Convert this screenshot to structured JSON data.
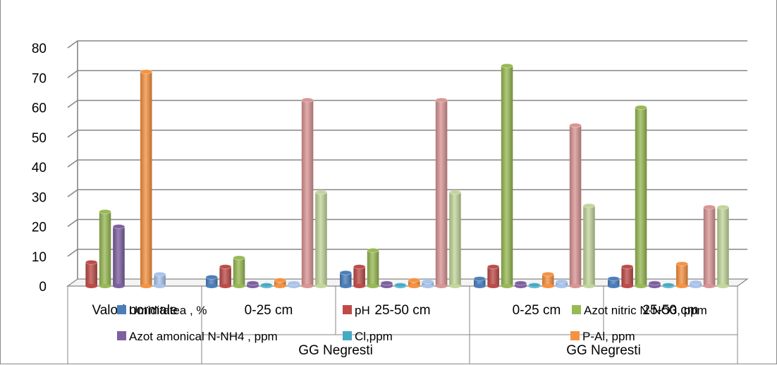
{
  "chart_data": {
    "type": "bar",
    "title": "",
    "xlabel": "",
    "ylabel": "",
    "ylim": [
      0,
      80
    ],
    "yticks": [
      "0",
      "10",
      "20",
      "30",
      "40",
      "50",
      "60",
      "70",
      "80"
    ],
    "grid": true,
    "legend_position": "overlapping-bottom",
    "categories": [
      {
        "label": "Valori normale",
        "group": ""
      },
      {
        "label": "0-25 cm",
        "group": "GG Negresti"
      },
      {
        "label": "25-50 cm",
        "group": "GG Negresti"
      },
      {
        "label": "0-25 cm",
        "group": "GG Negresti"
      },
      {
        "label": "25-50 cm",
        "group": "GG Negresti"
      }
    ],
    "groups": [
      {
        "label": "GG Negresti"
      },
      {
        "label": "GG Negresti"
      }
    ],
    "series": [
      {
        "name": "Umiditatea , %",
        "color": "#4a7ebb",
        "values": [
          null,
          3,
          4.5,
          2.5,
          2.5
        ]
      },
      {
        "name": "pH",
        "color": "#be4b48",
        "values": [
          8,
          6.5,
          6.5,
          6.5,
          6.5
        ]
      },
      {
        "name": "Azot nitric N-NO3, ppm",
        "color": "#98b954",
        "values": [
          25,
          9.5,
          12,
          74,
          60
        ]
      },
      {
        "name": "Azot amonical N-NH4 , ppm",
        "color": "#7d60a0",
        "values": [
          20,
          1,
          1,
          1,
          1
        ]
      },
      {
        "name": "Cl,ppm",
        "color": "#46aac5",
        "values": [
          null,
          0.2,
          0.2,
          0.2,
          0.2
        ]
      },
      {
        "name": "P-Al, ppm",
        "color": "#f69240",
        "values": [
          72,
          2,
          2,
          4,
          7.5
        ]
      },
      {
        "name": "",
        "color": "#a9c4eb",
        "values": [
          4,
          1,
          1.5,
          1.5,
          1.2
        ]
      },
      {
        "name": "",
        "color": "#d99594",
        "values": [
          null,
          62.5,
          62.5,
          54,
          26.5
        ]
      },
      {
        "name": "",
        "color": "#c3d69b",
        "values": [
          null,
          31.5,
          31.5,
          27,
          26.5
        ]
      }
    ]
  }
}
